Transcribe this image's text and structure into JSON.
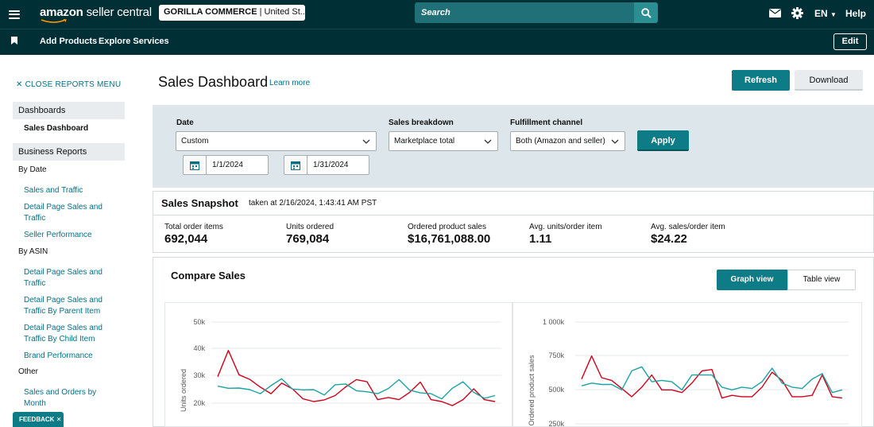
{
  "topbar": {
    "logo_brand": "amazon",
    "logo_product": " seller central",
    "account_bold": "GORILLA COMMERCE",
    "account_rest": " | United St...",
    "search_placeholder": "Search",
    "language": "EN",
    "help": "Help"
  },
  "subbar": {
    "add_products": "Add Products",
    "explore_services": "Explore Services",
    "edit": "Edit"
  },
  "sidebar": {
    "close_menu": "CLOSE REPORTS MENU",
    "dashboards": "Dashboards",
    "sales_dashboard": "Sales Dashboard",
    "business_reports": "Business Reports",
    "by_date": "By Date",
    "sales_and_traffic": "Sales and Traffic",
    "detail_page_sales_traffic": "Detail Page Sales and Traffic",
    "seller_performance": "Seller Performance",
    "by_asin": "By ASIN",
    "asin_detail_page": "Detail Page Sales and Traffic",
    "asin_by_parent": "Detail Page Sales and Traffic By Parent Item",
    "asin_by_child": "Detail Page Sales and Traffic By Child Item",
    "brand_performance": "Brand Performance",
    "other": "Other",
    "sales_orders_month": "Sales and Orders by Month",
    "feedback": "FEEDBACK"
  },
  "page": {
    "title": "Sales Dashboard",
    "learn_more": "Learn more",
    "refresh": "Refresh",
    "download": "Download"
  },
  "filters": {
    "date_label": "Date",
    "date_value": "Custom",
    "start_date": "1/1/2024",
    "end_date": "1/31/2024",
    "breakdown_label": "Sales breakdown",
    "breakdown_value": "Marketplace total",
    "fulfillment_label": "Fulfillment channel",
    "fulfillment_value": "Both (Amazon and seller)",
    "apply": "Apply"
  },
  "snapshot": {
    "title": "Sales Snapshot",
    "taken_at": "taken at 2/16/2024, 1:43:41 AM PST",
    "metrics": [
      {
        "label": "Total order items",
        "value": "692,044"
      },
      {
        "label": "Units ordered",
        "value": "769,084"
      },
      {
        "label": "Ordered product sales",
        "value": "$16,761,088.00"
      },
      {
        "label": "Avg. units/order item",
        "value": "1.11"
      },
      {
        "label": "Avg. sales/order item",
        "value": "$24.22"
      }
    ]
  },
  "compare": {
    "title": "Compare Sales",
    "graph_view": "Graph view",
    "table_view": "Table view"
  },
  "colors": {
    "header_bg": "#002f36",
    "accent": "#0e7c86",
    "link": "#007185",
    "series_red": "#d0021b",
    "series_teal": "#1aa3a3"
  },
  "chart_data": [
    {
      "type": "line",
      "ylabel": "Units ordered",
      "yticks": [
        "50k",
        "40k",
        "30k",
        "20k"
      ],
      "ylim": [
        13000,
        50000
      ],
      "series": [
        {
          "color": "#d0021b",
          "values": [
            29800,
            39500,
            30500,
            28800,
            25900,
            23500,
            27400,
            25300,
            21600,
            20600,
            21200,
            22800,
            26000,
            28700,
            27900,
            21300,
            22100,
            21300,
            24000,
            27800,
            21300,
            20600,
            19100,
            21300,
            25300,
            21300,
            20600
          ]
        },
        {
          "color": "#1aa3a3",
          "values": [
            26300,
            25500,
            25600,
            25000,
            23500,
            26500,
            29000,
            25200,
            24900,
            25000,
            23000,
            26800,
            27100,
            24600,
            24200,
            23500,
            25400,
            28700,
            24800,
            23800,
            23500,
            21600,
            25500,
            27900,
            24000,
            21800,
            22800
          ]
        }
      ]
    },
    {
      "type": "line",
      "ylabel": "Ordered product sales",
      "yticks": [
        "1 000k",
        "750k",
        "500k",
        "250k"
      ],
      "ylim": [
        220000,
        1000000
      ],
      "series": [
        {
          "color": "#d0021b",
          "values": [
            580000,
            750000,
            590000,
            570000,
            510000,
            450000,
            520000,
            610000,
            500000,
            500000,
            480000,
            550000,
            640000,
            650000,
            440000,
            460000,
            450000,
            450000,
            520000,
            630000,
            570000,
            450000,
            450000,
            460000,
            610000,
            450000,
            440000
          ]
        },
        {
          "color": "#1aa3a3",
          "values": [
            530000,
            550000,
            540000,
            540000,
            500000,
            640000,
            670000,
            560000,
            570000,
            560000,
            500000,
            610000,
            610000,
            610000,
            520000,
            500000,
            520000,
            510000,
            560000,
            660000,
            550000,
            520000,
            510000,
            580000,
            620000,
            480000,
            500000
          ]
        }
      ]
    }
  ]
}
